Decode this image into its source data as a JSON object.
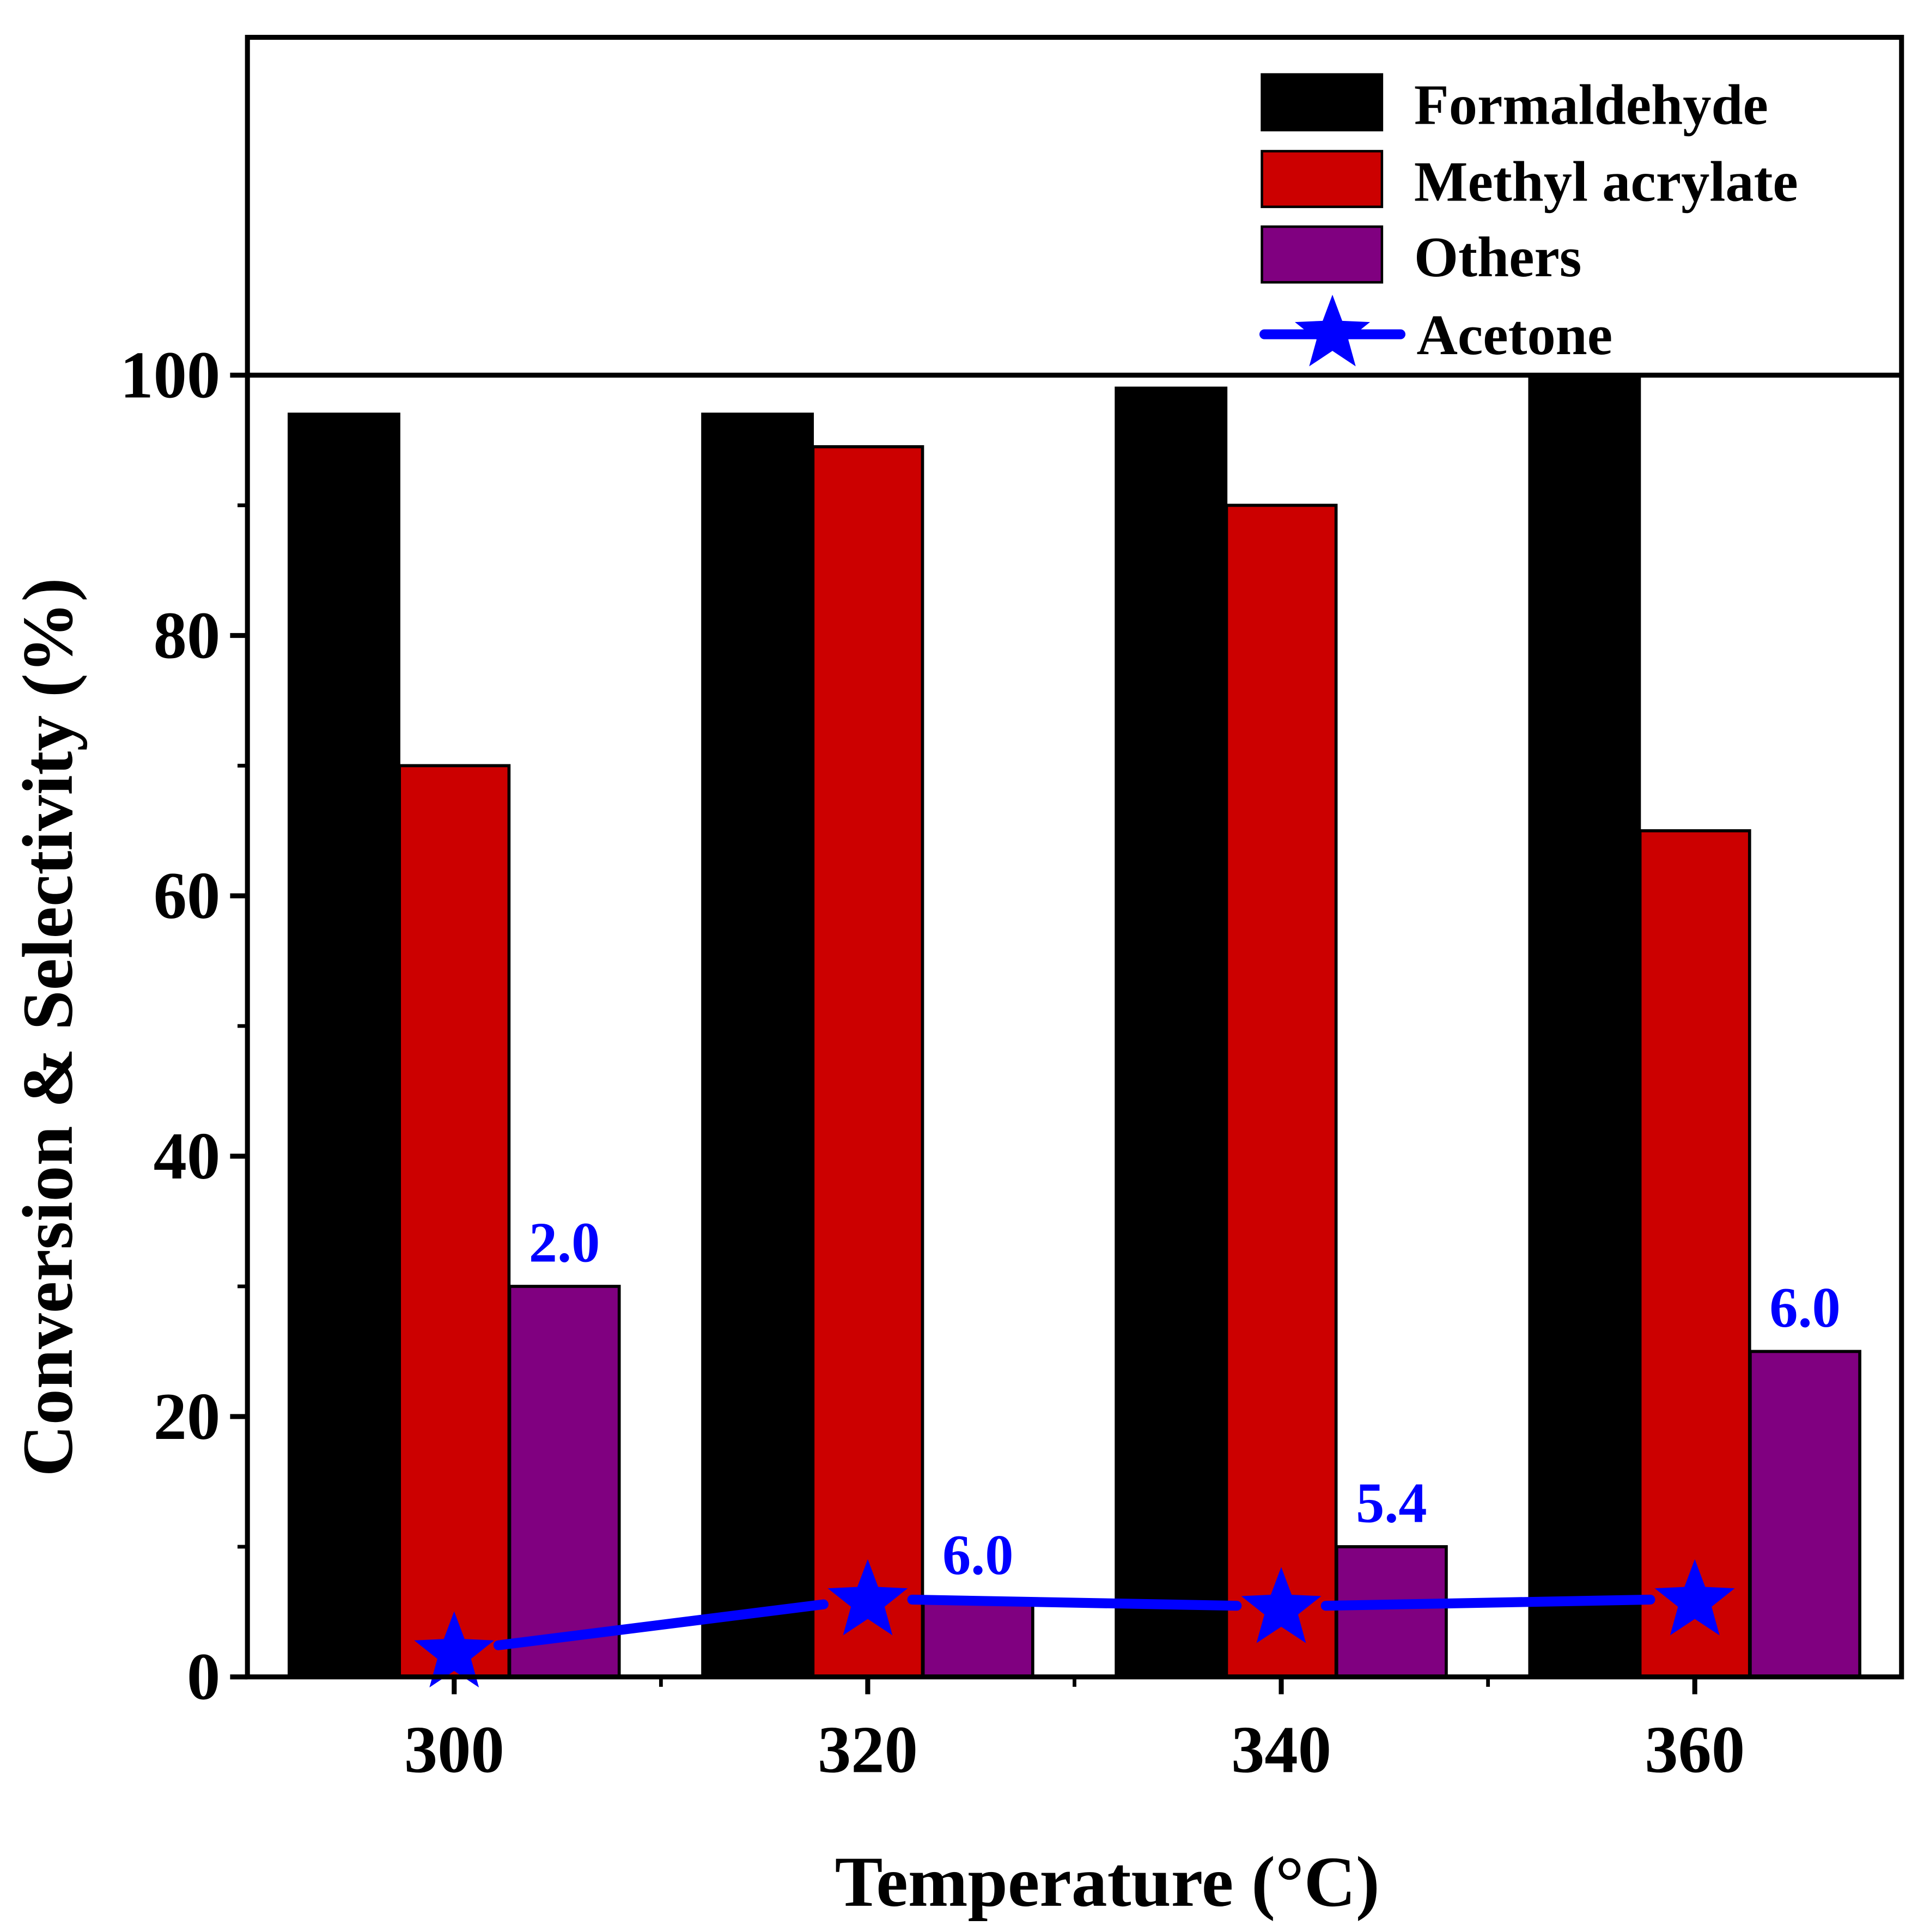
{
  "chart_data": {
    "type": "bar",
    "xlabel": "Temperature (°C)",
    "ylabel": "Conversion & Selectivity (%)",
    "categories": [
      300,
      320,
      340,
      360
    ],
    "x_ticks": [
      "300",
      "320",
      "340",
      "360"
    ],
    "y_ticks": [
      "0",
      "20",
      "40",
      "60",
      "80",
      "100"
    ],
    "xlim": [
      290,
      370
    ],
    "ylim": [
      0,
      100
    ],
    "grid": false,
    "legend_position": "top-right",
    "series": [
      {
        "name": "Formaldehyde",
        "type": "bar",
        "color": "#000000",
        "values": [
          97,
          97,
          99,
          100
        ]
      },
      {
        "name": "Methyl acrylate",
        "type": "bar",
        "color": "#cc0000",
        "values": [
          70,
          94.5,
          90,
          65
        ]
      },
      {
        "name": "Others",
        "type": "bar",
        "color": "#800080",
        "values": [
          30,
          6,
          10,
          25
        ]
      },
      {
        "name": "Acetone",
        "type": "line",
        "marker": "star",
        "color": "#0000ff",
        "values": [
          2.0,
          6.0,
          5.4,
          6.0
        ]
      }
    ],
    "data_labels": [
      "2.0",
      "6.0",
      "5.4",
      "6.0"
    ]
  }
}
